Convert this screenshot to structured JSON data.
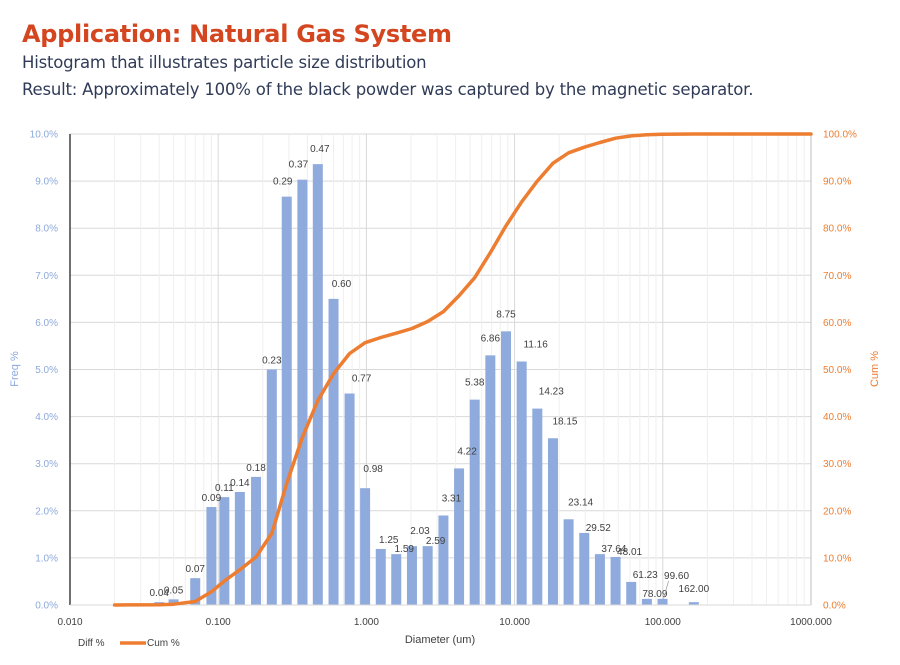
{
  "header": {
    "title": "Application: Natural Gas System",
    "subtitle": "Histogram that illustrates particle size distribution",
    "result": "Result: Approximately 100% of the black powder was captured by the magnetic separator."
  },
  "colors": {
    "title": "#d4461f",
    "text": "#2f3b57",
    "bars": "#8faadc",
    "line": "#ed7d31",
    "left_axis_text": "#8ea9db",
    "right_axis_text": "#ed7d31"
  },
  "chart_data": {
    "type": "bar+line",
    "title": "",
    "xlabel": "Diameter (um)",
    "ylabel": "Freq %",
    "y2label": "Cum %",
    "x_scale": "log",
    "xlim": [
      0.01,
      1000
    ],
    "ylim": [
      0,
      10
    ],
    "y2lim": [
      0,
      100
    ],
    "grid": true,
    "x_ticks": [
      "0.010",
      "0.100",
      "1.000",
      "10.000",
      "100.000",
      "1000.000"
    ],
    "y_ticks": [
      "0.0%",
      "1.0%",
      "2.0%",
      "3.0%",
      "4.0%",
      "5.0%",
      "6.0%",
      "7.0%",
      "8.0%",
      "9.0%",
      "10.0%"
    ],
    "y2_ticks": [
      "0.0%",
      "10.0%",
      "20.0%",
      "30.0%",
      "40.0%",
      "50.0%",
      "60.0%",
      "70.0%",
      "80.0%",
      "90.0%",
      "100.0%"
    ],
    "legend": {
      "position": "bottom-left",
      "entries": [
        "Diff %",
        "Cum %"
      ]
    },
    "series": [
      {
        "name": "Diff %",
        "type": "bar",
        "axis": "left",
        "x": [
          0.04,
          0.05,
          0.07,
          0.09,
          0.11,
          0.14,
          0.18,
          0.23,
          0.29,
          0.37,
          0.47,
          0.6,
          0.77,
          0.98,
          1.25,
          1.59,
          2.03,
          2.59,
          3.31,
          4.22,
          5.38,
          6.86,
          8.75,
          11.16,
          14.23,
          18.15,
          23.14,
          29.52,
          37.64,
          48.01,
          61.23,
          78.09,
          99.6,
          162.0
        ],
        "labels": [
          "0.04",
          "0.05",
          "0.07",
          "0.09",
          "0.11",
          "0.14",
          "0.18",
          "0.23",
          "0.29",
          "0.37",
          "0.47",
          "0.60",
          "0.77",
          "0.98",
          "1.25",
          "1.59",
          "2.03",
          "2.59",
          "3.31",
          "4.22",
          "5.38",
          "6.86",
          "8.75",
          "11.16",
          "14.23",
          "18.15",
          "23.14",
          "29.52",
          "37.64",
          "48.01",
          "61.23",
          "78.09",
          "99.60",
          "162.00"
        ],
        "values": [
          0.06,
          0.12,
          0.57,
          2.08,
          2.29,
          2.4,
          2.72,
          5.0,
          8.67,
          9.03,
          9.36,
          6.5,
          4.49,
          2.48,
          1.19,
          1.08,
          1.25,
          1.25,
          1.9,
          2.9,
          4.36,
          5.3,
          5.81,
          5.17,
          4.17,
          3.54,
          1.82,
          1.53,
          1.08,
          1.02,
          0.49,
          0.13,
          0.13,
          0.06
        ]
      },
      {
        "name": "Cum %",
        "type": "line",
        "axis": "right",
        "x": [
          0.02,
          0.04,
          0.05,
          0.07,
          0.09,
          0.11,
          0.14,
          0.18,
          0.23,
          0.29,
          0.37,
          0.47,
          0.6,
          0.77,
          0.98,
          1.25,
          1.59,
          2.03,
          2.59,
          3.31,
          4.22,
          5.38,
          6.86,
          8.75,
          11.16,
          14.23,
          18.15,
          23.14,
          29.52,
          37.64,
          48.01,
          61.23,
          78.09,
          99.6,
          162.0,
          1000.0
        ],
        "values": [
          0.0,
          0.06,
          0.18,
          0.75,
          2.8,
          5.1,
          7.5,
          10.2,
          15.2,
          25.8,
          35.6,
          43.4,
          49.1,
          53.4,
          55.7,
          56.8,
          57.7,
          58.7,
          60.2,
          62.3,
          65.7,
          69.5,
          74.8,
          80.5,
          85.6,
          90.0,
          93.8,
          96.0,
          97.2,
          98.2,
          99.1,
          99.6,
          99.85,
          99.95,
          100.0,
          100.0
        ]
      }
    ],
    "annotations": [
      {
        "text": "99.60",
        "note": "label with leader line"
      }
    ]
  }
}
